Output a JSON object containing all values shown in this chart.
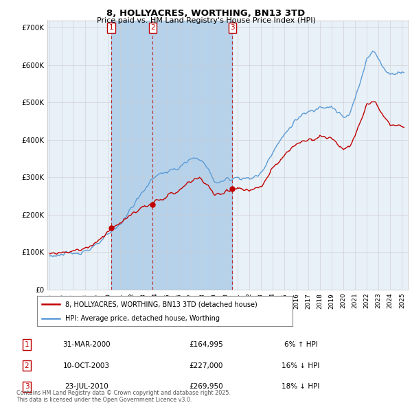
{
  "title": "8, HOLLYACRES, WORTHING, BN13 3TD",
  "subtitle": "Price paid vs. HM Land Registry's House Price Index (HPI)",
  "ylim": [
    0,
    720000
  ],
  "yticks": [
    0,
    100000,
    200000,
    300000,
    400000,
    500000,
    600000,
    700000
  ],
  "ytick_labels": [
    "£0",
    "£100K",
    "£200K",
    "£300K",
    "£400K",
    "£500K",
    "£600K",
    "£700K"
  ],
  "sale_dates_float": [
    2000.247,
    2003.772,
    2010.556
  ],
  "sale_prices": [
    164995,
    227000,
    269950
  ],
  "sale_labels": [
    "1",
    "2",
    "3"
  ],
  "xlim_start": 1995.0,
  "xlim_end": 2025.5,
  "legend_house": "8, HOLLYACRES, WORTHING, BN13 3TD (detached house)",
  "legend_hpi": "HPI: Average price, detached house, Worthing",
  "table_rows": [
    [
      "1",
      "31-MAR-2000",
      "£164,995",
      "6% ↑ HPI"
    ],
    [
      "2",
      "10-OCT-2003",
      "£227,000",
      "16% ↓ HPI"
    ],
    [
      "3",
      "23-JUL-2010",
      "£269,950",
      "18% ↓ HPI"
    ]
  ],
  "footnote": "Contains HM Land Registry data © Crown copyright and database right 2025.\nThis data is licensed under the Open Government Licence v3.0.",
  "hpi_color": "#5b9bd5",
  "house_color": "#c00000",
  "shade_color": "#ddeeff",
  "bg_color": "#eef4fb",
  "grid_color": "#cccccc",
  "chart_bg": "#e8f0f8"
}
